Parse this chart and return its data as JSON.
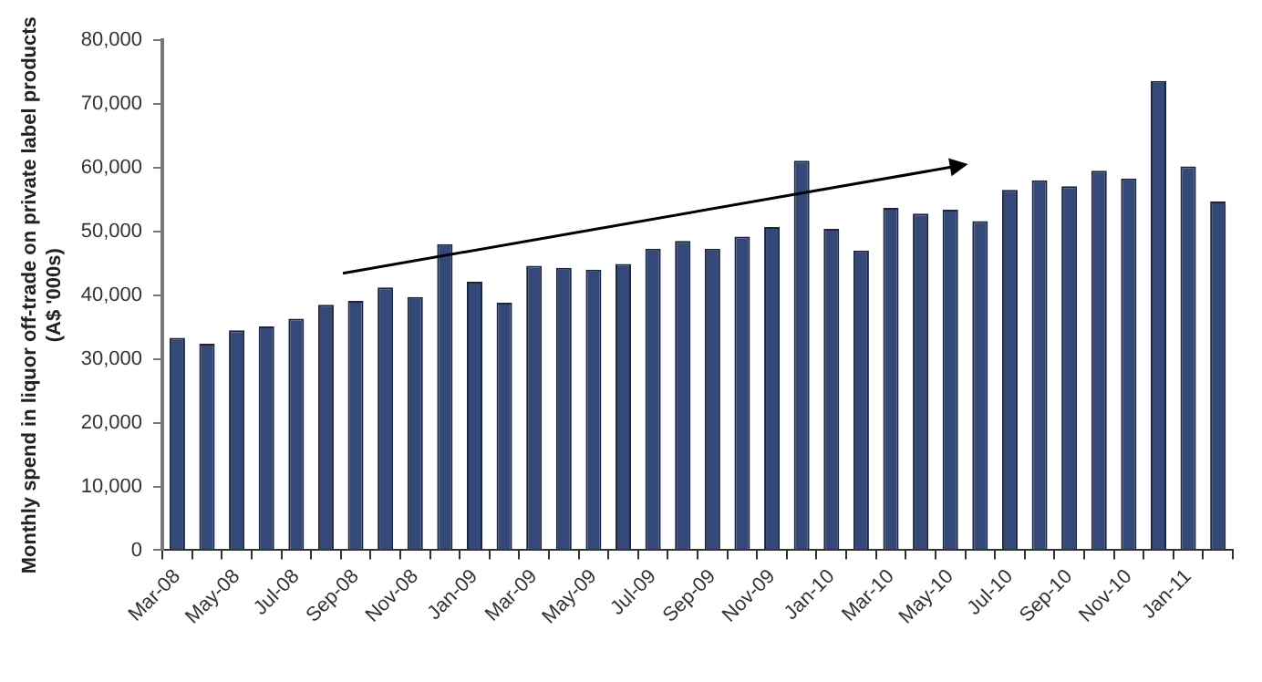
{
  "chart_data": {
    "type": "bar",
    "ylabel": "Monthly spend in liquor off-trade on private label products\n(A$ '000s)",
    "categories": [
      "Mar-08",
      null,
      "May-08",
      null,
      "Jul-08",
      null,
      "Sep-08",
      null,
      "Nov-08",
      null,
      "Jan-09",
      null,
      "Mar-09",
      null,
      "May-09",
      null,
      "Jul-09",
      null,
      "Sep-09",
      null,
      "Nov-09",
      null,
      "Jan-10",
      null,
      "Mar-10",
      null,
      "May-10",
      null,
      "Jul-10",
      null,
      "Sep-10",
      null,
      "Nov-10",
      null,
      "Jan-11",
      null
    ],
    "values": [
      33300,
      32400,
      34500,
      35100,
      36300,
      38500,
      39100,
      41200,
      39700,
      48000,
      42100,
      38800,
      44600,
      44300,
      44000,
      44900,
      47300,
      48500,
      47300,
      49200,
      50700,
      61100,
      50400,
      47000,
      53700,
      52800,
      53400,
      51600,
      56500,
      58000,
      57100,
      59500,
      58300,
      73600,
      60200,
      54700
    ],
    "color": "#34497a",
    "ylim": [
      0,
      80000
    ],
    "yticks": [
      {
        "value": 0,
        "label": "0"
      },
      {
        "value": 10000,
        "label": "10,000"
      },
      {
        "value": 20000,
        "label": "20,000"
      },
      {
        "value": 30000,
        "label": "30,000"
      },
      {
        "value": 40000,
        "label": "40,000"
      },
      {
        "value": 50000,
        "label": "50,000"
      },
      {
        "value": 60000,
        "label": "60,000"
      },
      {
        "value": 70000,
        "label": "70,000"
      },
      {
        "value": 80000,
        "label": "80,000"
      }
    ],
    "grid": false,
    "legend": false
  }
}
